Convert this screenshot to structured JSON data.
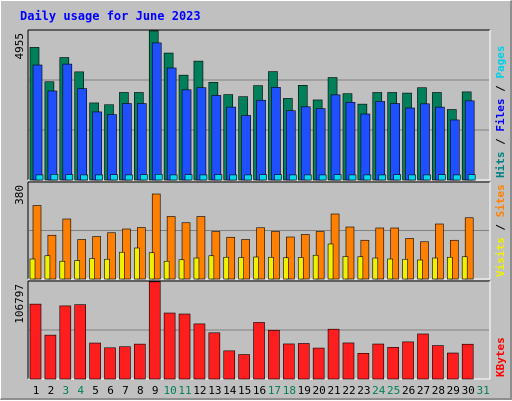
{
  "chart_data": {
    "type": "bar",
    "title": "Daily usage for June 2023",
    "categories": [
      "1",
      "2",
      "3",
      "4",
      "5",
      "6",
      "7",
      "8",
      "9",
      "10",
      "11",
      "12",
      "13",
      "14",
      "15",
      "16",
      "17",
      "18",
      "19",
      "20",
      "21",
      "22",
      "23",
      "24",
      "25",
      "26",
      "27",
      "28",
      "29",
      "30",
      "31"
    ],
    "weekend_days": [
      "3",
      "4",
      "10",
      "11",
      "17",
      "18",
      "24",
      "25",
      "31"
    ],
    "panels": [
      {
        "ylabel_parts": [
          {
            "text": "Hits",
            "color": "#008080"
          },
          {
            "text": " / ",
            "color": "#000000"
          },
          {
            "text": "Files",
            "color": "#0000ff"
          },
          {
            "text": " / ",
            "color": "#000000"
          },
          {
            "text": "Pages",
            "color": "#00d0e8"
          }
        ],
        "ymax_label": "4955",
        "ylim": [
          0,
          4955
        ],
        "series": [
          {
            "name": "Hits",
            "color": "#00805a",
            "values": [
              4440,
              3290,
              4100,
              3620,
              2580,
              2520,
              2930,
              2930,
              4990,
              4250,
              3510,
              3980,
              3270,
              2860,
              2790,
              3160,
              3630,
              2730,
              3170,
              2680,
              3430,
              2890,
              2540,
              2930,
              2930,
              2910,
              3090,
              2930,
              2360,
              2950,
              0
            ]
          },
          {
            "name": "Files",
            "color": "#1e50ff",
            "values": [
              3850,
              2980,
              3880,
              3060,
              2280,
              2190,
              2560,
              2560,
              4590,
              3750,
              3020,
              3090,
              2830,
              2440,
              2160,
              2670,
              3100,
              2320,
              2450,
              2390,
              2850,
              2600,
              2210,
              2630,
              2560,
              2410,
              2550,
              2440,
              2010,
              2650,
              0
            ]
          },
          {
            "name": "Pages",
            "color": "#00d8f0",
            "values": [
              170,
              190,
              180,
              170,
              170,
              180,
              170,
              180,
              190,
              170,
              180,
              170,
              180,
              170,
              170,
              180,
              180,
              170,
              170,
              170,
              180,
              170,
              170,
              170,
              180,
              170,
              170,
              180,
              170,
              180,
              0
            ]
          }
        ]
      },
      {
        "ylabel_parts": [
          {
            "text": "Visits",
            "color": "#f0f000"
          },
          {
            "text": " / ",
            "color": "#000000"
          },
          {
            "text": "Sites",
            "color": "#ff8000"
          }
        ],
        "ymax_label": "380",
        "ylim": [
          0,
          380
        ],
        "series": [
          {
            "name": "Sites",
            "color": "#ff8000",
            "values": [
              294,
              175,
              240,
              158,
              170,
              185,
              200,
              206,
              340,
              250,
              225,
              250,
              190,
              167,
              158,
              205,
              190,
              168,
              178,
              190,
              260,
              208,
              155,
              204,
              204,
              162,
              149,
              220,
              155,
              245,
              0
            ]
          },
          {
            "name": "Visits",
            "color": "#f0f000",
            "values": [
              80,
              93,
              71,
              74,
              82,
              79,
              107,
              124,
              105,
              71,
              77,
              84,
              93,
              87,
              86,
              88,
              87,
              85,
              86,
              95,
              140,
              90,
              89,
              84,
              80,
              79,
              76,
              84,
              87,
              89,
              0
            ]
          }
        ]
      },
      {
        "ylabel_parts": [
          {
            "text": "KBytes",
            "color": "#ff0000"
          }
        ],
        "ymax_label": "106797",
        "ylim": [
          0,
          106797
        ],
        "series": [
          {
            "name": "KBytes",
            "color": "#ff1e1e",
            "values": [
              83300,
              48800,
              81300,
              82700,
              40000,
              34700,
              35900,
              38800,
              108100,
              73400,
              72300,
              61300,
              51400,
              31300,
              27200,
              62900,
              54200,
              39000,
              39500,
              34400,
              55400,
              40100,
              28600,
              38900,
              35200,
              41300,
              50100,
              37200,
              28900,
              38700,
              0
            ]
          }
        ]
      }
    ]
  }
}
